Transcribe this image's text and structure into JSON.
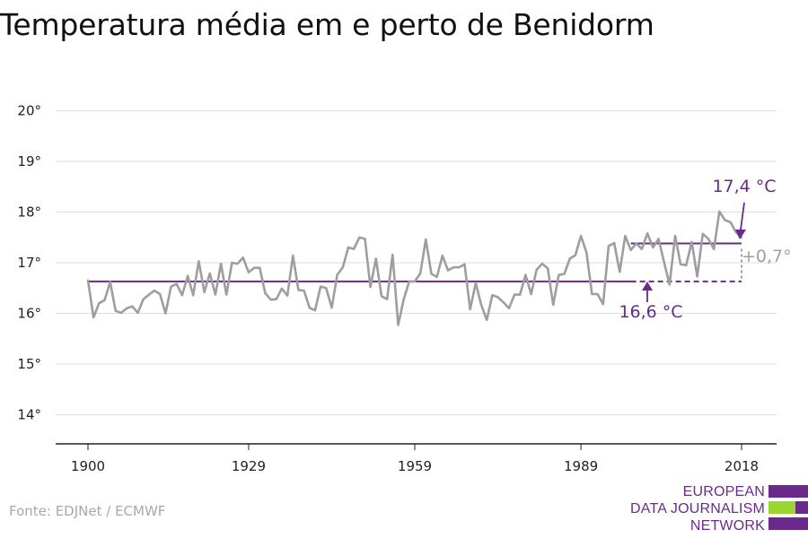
{
  "title": "Temperatura média em e perto de Benidorm",
  "source": "Fonte: EDJNet / ECMWF",
  "logo": {
    "line1": "EUROPEAN",
    "line2": "DATA JOURNALISM",
    "line3": "NETWORK",
    "color_primary": "#6a2a8c",
    "color_secondary": "#9bd531"
  },
  "colors": {
    "series": "#9e9e9e",
    "reference": "#6a2a8c",
    "grid": "#dddddd",
    "axis": "#222222",
    "delta": "#a0a0a0"
  },
  "chart_data": {
    "type": "line",
    "x_ticks": [
      1900,
      1929,
      1959,
      1989,
      2018
    ],
    "y_ticks": [
      14,
      15,
      16,
      17,
      18,
      19,
      20
    ],
    "y_tick_suffix": "°",
    "ylim": [
      13.4,
      20.4
    ],
    "xlim": [
      1895,
      2025
    ],
    "grid": true,
    "series": [
      {
        "x_start": 1900,
        "values": [
          16.65,
          15.92,
          16.2,
          16.26,
          16.62,
          16.05,
          16.01,
          16.1,
          16.14,
          16.01,
          16.28,
          16.37,
          16.45,
          16.38,
          16.0,
          16.53,
          16.58,
          16.36,
          16.74,
          16.36,
          17.03,
          16.42,
          16.79,
          16.37,
          16.98,
          16.37,
          17.0,
          16.98,
          17.1,
          16.81,
          16.9,
          16.9,
          16.4,
          16.27,
          16.28,
          16.49,
          16.35,
          17.14,
          16.46,
          16.45,
          16.11,
          16.06,
          16.53,
          16.5,
          16.11,
          16.76,
          16.91,
          17.3,
          17.27,
          17.5,
          17.47,
          16.52,
          17.08,
          16.34,
          16.28,
          17.16,
          15.77,
          16.28,
          16.63,
          16.63,
          16.79,
          17.46,
          16.78,
          16.72,
          17.14,
          16.85,
          16.91,
          16.91,
          16.97,
          16.08,
          16.6,
          16.17,
          15.87,
          16.36,
          16.32,
          16.22,
          16.1,
          16.37,
          16.37,
          16.76,
          16.38,
          16.86,
          16.98,
          16.89,
          16.17,
          16.76,
          16.78,
          17.08,
          17.15,
          17.53,
          17.2,
          16.38,
          16.38,
          16.18,
          17.33,
          17.39,
          16.82,
          17.53,
          17.25,
          17.38,
          17.27,
          17.58,
          17.3,
          17.47,
          17.02,
          16.57,
          17.53,
          16.97,
          16.95,
          17.41,
          16.73,
          17.57,
          17.47,
          17.27,
          18.01,
          17.84,
          17.8,
          17.6,
          17.5
        ]
      }
    ],
    "reference_lines": [
      {
        "label": "16,6 °C",
        "value": 16.63,
        "x_from": 1900,
        "x_to": 2018,
        "solid_to": 1998
      },
      {
        "label": "17,4 °C",
        "value": 17.38,
        "x_from": 1998,
        "x_to": 2018
      }
    ],
    "delta_label": "+0,7°"
  }
}
